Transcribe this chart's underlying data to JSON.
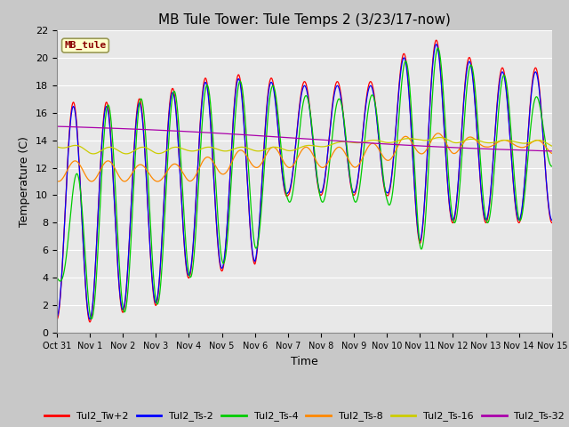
{
  "title": "MB Tule Tower: Tule Temps 2 (3/23/17-now)",
  "xlabel": "Time",
  "ylabel": "Temperature (C)",
  "legend_label": "MB_tule",
  "x_tick_labels": [
    "Oct 31",
    "Nov 1",
    "Nov 2",
    "Nov 3",
    "Nov 4",
    "Nov 5",
    "Nov 6",
    "Nov 7",
    "Nov 8",
    "Nov 9",
    "Nov 10",
    "Nov 11",
    "Nov 12",
    "Nov 13",
    "Nov 14",
    "Nov 15"
  ],
  "ylim": [
    0,
    22
  ],
  "yticks": [
    0,
    2,
    4,
    6,
    8,
    10,
    12,
    14,
    16,
    18,
    20,
    22
  ],
  "series_labels": [
    "Tul2_Tw+2",
    "Tul2_Ts-2",
    "Tul2_Ts-4",
    "Tul2_Ts-8",
    "Tul2_Ts-16",
    "Tul2_Ts-32"
  ],
  "series_colors": [
    "#ff0000",
    "#0000ff",
    "#00cc00",
    "#ff8800",
    "#cccc00",
    "#aa00aa"
  ],
  "bg_color": "#e0e0e0",
  "title_fontsize": 11,
  "axis_fontsize": 9,
  "tick_fontsize": 8
}
